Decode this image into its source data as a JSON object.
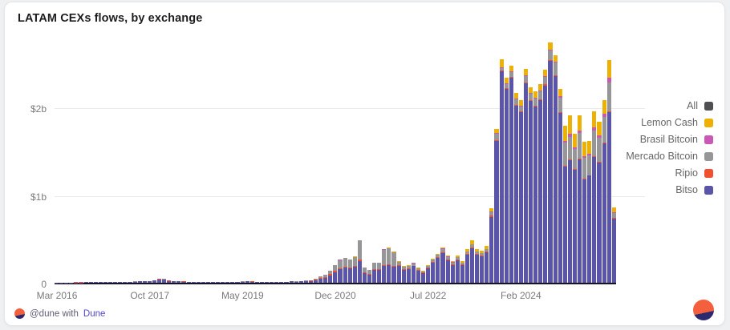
{
  "card": {
    "title": "LATAM CEXs flows, by exchange"
  },
  "footer": {
    "attribution_prefix": "@dune with",
    "attribution_brand": "Dune"
  },
  "legend": [
    {
      "label": "All",
      "color": "#4f4f52"
    },
    {
      "label": "Lemon Cash",
      "color": "#ecb104"
    },
    {
      "label": "Brasil Bitcoin",
      "color": "#ca59b6"
    },
    {
      "label": "Mercado Bitcoin",
      "color": "#969699"
    },
    {
      "label": "Ripio",
      "color": "#f0502e"
    },
    {
      "label": "Bitso",
      "color": "#5b55a9"
    }
  ],
  "chart_data": {
    "type": "bar",
    "stacked": true,
    "title": "LATAM CEXs flows, by exchange",
    "unit": "USD",
    "values_in": "millions",
    "y_max": 2800,
    "y_ticks": [
      {
        "label": "0",
        "value": 0
      },
      {
        "label": "$1b",
        "value": 1000
      },
      {
        "label": "$2b",
        "value": 2000
      }
    ],
    "x_range": {
      "start": "Mar 2016",
      "end": "Sep 2025",
      "interval": "monthly"
    },
    "x_ticks": [
      {
        "label": "Mar 2016",
        "index": 0
      },
      {
        "label": "Oct 2017",
        "index": 19
      },
      {
        "label": "May 2019",
        "index": 38
      },
      {
        "label": "Dec 2020",
        "index": 57
      },
      {
        "label": "Jul 2022",
        "index": 76
      },
      {
        "label": "Feb 2024",
        "index": 95
      }
    ],
    "series": [
      {
        "name": "Bitso",
        "key": "bitso",
        "color": "#5b55a9",
        "values": [
          3,
          3,
          4,
          4,
          4,
          4,
          5,
          5,
          6,
          7,
          7,
          8,
          8,
          9,
          10,
          12,
          12,
          14,
          15,
          18,
          25,
          40,
          35,
          23,
          18,
          15,
          13,
          12,
          11,
          10,
          9,
          8,
          8,
          8,
          7,
          8,
          9,
          10,
          12,
          14,
          13,
          11,
          10,
          9,
          8,
          9,
          9,
          11,
          14,
          12,
          15,
          18,
          21,
          30,
          45,
          55,
          85,
          120,
          160,
          175,
          165,
          185,
          250,
          115,
          95,
          145,
          150,
          190,
          200,
          180,
          195,
          150,
          160,
          190,
          140,
          112,
          168,
          232,
          282,
          340,
          262,
          205,
          262,
          205,
          322,
          400,
          325,
          305,
          350,
          760,
          1630,
          2430,
          2230,
          2360,
          2040,
          1960,
          2290,
          2090,
          2030,
          2100,
          2270,
          2550,
          2380,
          1950,
          1340,
          1410,
          1300,
          1420,
          1190,
          1230,
          1450,
          1380,
          1600,
          1960,
          740
        ]
      },
      {
        "name": "Ripio",
        "key": "ripio",
        "color": "#f0502e",
        "values": [
          0,
          0,
          0,
          0,
          1,
          1,
          1,
          1,
          1,
          1,
          1,
          1,
          1,
          1,
          1,
          1,
          2,
          2,
          2,
          3,
          4,
          6,
          5,
          3,
          3,
          2,
          2,
          1,
          1,
          1,
          1,
          1,
          1,
          1,
          1,
          1,
          1,
          2,
          2,
          2,
          2,
          2,
          1,
          1,
          1,
          1,
          1,
          1,
          2,
          2,
          2,
          3,
          3,
          5,
          7,
          9,
          13,
          18,
          10,
          10,
          10,
          12,
          15,
          8,
          7,
          10,
          10,
          12,
          12,
          10,
          8,
          6,
          6,
          7,
          5,
          4,
          6,
          8,
          9,
          10,
          8,
          6,
          6,
          5,
          7,
          8,
          7,
          6,
          7,
          10,
          12,
          12,
          10,
          10,
          8,
          8,
          10,
          8,
          8,
          10,
          10,
          10,
          10,
          10,
          8,
          10,
          8,
          10,
          8,
          8,
          10,
          8,
          10,
          10,
          5
        ]
      },
      {
        "name": "Mercado Bitcoin",
        "key": "mercado-bitcoin",
        "color": "#969699",
        "values": [
          0,
          0,
          0,
          0,
          0,
          0,
          0,
          0,
          0,
          0,
          0,
          0,
          1,
          1,
          1,
          1,
          1,
          1,
          1,
          1,
          1,
          2,
          2,
          2,
          1,
          1,
          1,
          1,
          1,
          1,
          1,
          1,
          1,
          1,
          1,
          1,
          1,
          1,
          1,
          1,
          1,
          1,
          1,
          1,
          1,
          1,
          2,
          2,
          2,
          2,
          3,
          4,
          6,
          10,
          18,
          26,
          42,
          62,
          92,
          97,
          92,
          100,
          220,
          55,
          46,
          72,
          72,
          180,
          185,
          160,
          35,
          25,
          25,
          28,
          20,
          15,
          20,
          25,
          28,
          40,
          28,
          22,
          25,
          20,
          28,
          30,
          28,
          27,
          30,
          45,
          68,
          30,
          45,
          55,
          60,
          60,
          80,
          75,
          85,
          90,
          90,
          110,
          140,
          170,
          260,
          260,
          230,
          290,
          240,
          230,
          290,
          280,
          300,
          330,
          60
        ]
      },
      {
        "name": "Brasil Bitcoin",
        "key": "brasil-bitcoin",
        "color": "#ca59b6",
        "values": [
          0,
          0,
          0,
          0,
          0,
          0,
          0,
          0,
          0,
          0,
          0,
          0,
          0,
          0,
          0,
          0,
          0,
          0,
          0,
          0,
          0,
          0,
          0,
          0,
          0,
          0,
          0,
          0,
          0,
          0,
          0,
          0,
          0,
          0,
          0,
          0,
          0,
          0,
          0,
          0,
          0,
          0,
          0,
          0,
          0,
          0,
          0,
          0,
          0,
          0,
          0,
          0,
          0,
          0,
          0,
          0,
          0,
          0,
          1,
          1,
          1,
          1,
          2,
          1,
          1,
          1,
          1,
          3,
          3,
          3,
          2,
          2,
          2,
          2,
          2,
          1,
          2,
          3,
          3,
          4,
          3,
          3,
          2,
          2,
          3,
          5,
          3,
          3,
          3,
          5,
          10,
          10,
          10,
          10,
          7,
          7,
          10,
          7,
          7,
          10,
          10,
          10,
          15,
          20,
          20,
          35,
          17,
          28,
          22,
          17,
          35,
          25,
          30,
          60,
          8
        ]
      },
      {
        "name": "Lemon Cash",
        "key": "lemon-cash",
        "color": "#ecb104",
        "values": [
          0,
          0,
          0,
          0,
          0,
          0,
          0,
          0,
          0,
          0,
          0,
          0,
          0,
          0,
          0,
          0,
          0,
          0,
          0,
          0,
          0,
          0,
          0,
          0,
          0,
          0,
          0,
          0,
          0,
          0,
          0,
          0,
          0,
          0,
          0,
          0,
          0,
          0,
          0,
          0,
          0,
          0,
          0,
          0,
          0,
          0,
          0,
          0,
          0,
          0,
          0,
          0,
          0,
          0,
          0,
          0,
          0,
          0,
          2,
          2,
          2,
          2,
          3,
          1,
          1,
          2,
          2,
          5,
          10,
          7,
          10,
          7,
          7,
          8,
          8,
          8,
          9,
          12,
          13,
          16,
          14,
          14,
          20,
          18,
          25,
          42,
          27,
          29,
          30,
          40,
          50,
          88,
          65,
          65,
          65,
          65,
          70,
          70,
          70,
          70,
          70,
          80,
          75,
          80,
          182,
          215,
          155,
          182,
          160,
          145,
          185,
          157,
          160,
          200,
          57
        ]
      }
    ]
  }
}
